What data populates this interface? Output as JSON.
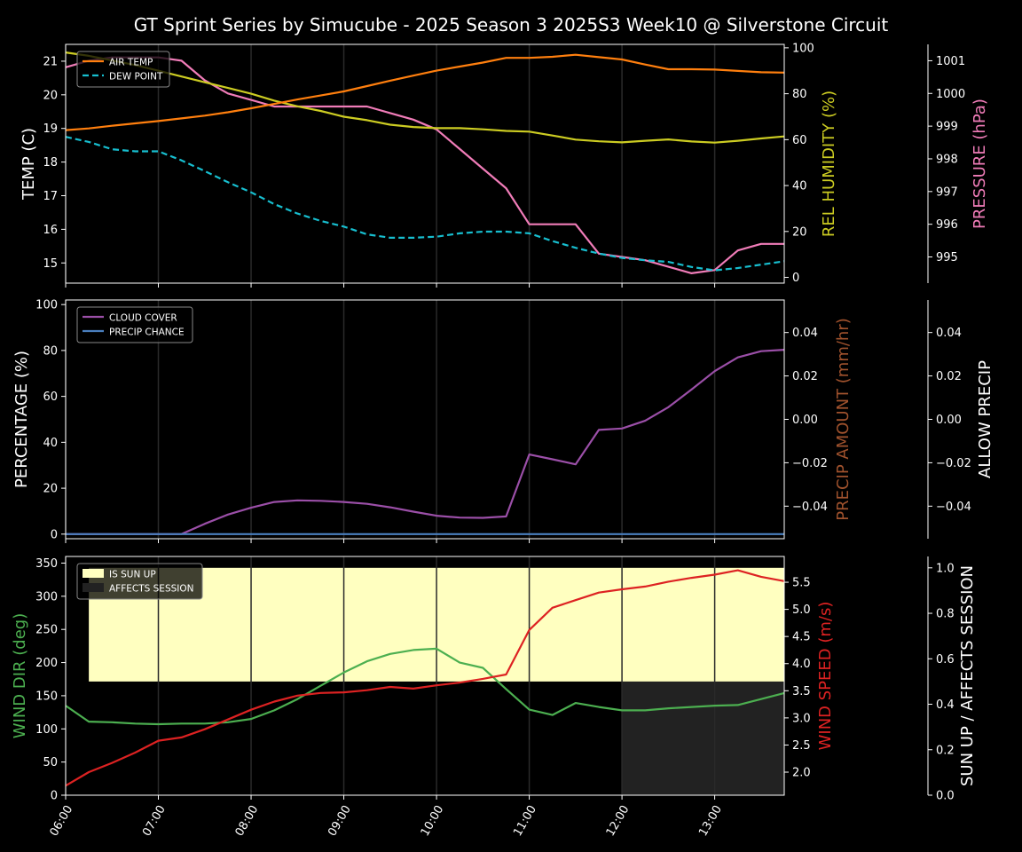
{
  "title": "GT Sprint Series by Simucube - 2025 Season 3 2025S3 Week10 @ Silverstone Circuit",
  "x_ticks": [
    "06:00",
    "07:00",
    "08:00",
    "09:00",
    "10:00",
    "11:00",
    "12:00",
    "13:00"
  ],
  "colors": {
    "background": "#000000",
    "axes": "#ffffff",
    "air_temp": "#ff7f0e",
    "dew_point": "#17becf",
    "humidity": "#cccc22",
    "pressure": "#f07cb8",
    "cloud": "#9b4fa8",
    "precip_chance": "#4a7fbf",
    "precip_amount_label": "#a0522d",
    "wind_dir": "#4caf50",
    "wind_speed": "#dd2222",
    "sun_up": "#ffffc0",
    "affects_session": "#222222"
  },
  "chart_data": [
    {
      "type": "line",
      "panel": "temperature",
      "ylabel": "TEMP (C)",
      "ylabel2": "REL HUMIDITY (%)",
      "ylabel3": "PRESSURE (hPa)",
      "yticks": [
        "15",
        "16",
        "17",
        "18",
        "19",
        "20",
        "21"
      ],
      "y2ticks": [
        "0",
        "20",
        "40",
        "60",
        "80",
        "100"
      ],
      "y3ticks": [
        "995",
        "996",
        "997",
        "998",
        "999",
        "1000",
        "1001"
      ],
      "ylim": [
        14.4,
        21.5
      ],
      "y2lim": [
        -2.5,
        101.5
      ],
      "y3lim": [
        994.2,
        1001.5
      ],
      "x": [
        6.0,
        6.25,
        6.5,
        6.75,
        7.0,
        7.25,
        7.5,
        7.75,
        8.0,
        8.25,
        8.5,
        8.75,
        9.0,
        9.25,
        9.5,
        9.75,
        10.0,
        10.25,
        10.5,
        10.75,
        11.0,
        11.25,
        11.5,
        11.75,
        12.0,
        12.25,
        12.5,
        12.75,
        13.0,
        13.25,
        13.5,
        13.75
      ],
      "legend": [
        "AIR TEMP",
        "DEW POINT"
      ],
      "series": [
        {
          "name": "AIR TEMP",
          "axis": "left",
          "values": [
            18.95,
            19.0,
            19.08,
            19.15,
            19.22,
            19.3,
            19.38,
            19.48,
            19.6,
            19.73,
            19.86,
            19.98,
            20.1,
            20.26,
            20.42,
            20.57,
            20.72,
            20.84,
            20.96,
            21.1,
            21.1,
            21.13,
            21.19,
            21.12,
            21.05,
            20.9,
            20.76,
            20.76,
            20.75,
            20.71,
            20.67,
            20.66
          ]
        },
        {
          "name": "DEW POINT",
          "axis": "left",
          "values": [
            18.75,
            18.6,
            18.38,
            18.32,
            18.32,
            18.05,
            17.73,
            17.4,
            17.1,
            16.75,
            16.47,
            16.25,
            16.08,
            15.85,
            15.75,
            15.75,
            15.78,
            15.88,
            15.93,
            15.93,
            15.88,
            15.65,
            15.45,
            15.28,
            15.15,
            15.08,
            15.03,
            14.88,
            14.78,
            14.85,
            14.95,
            15.05
          ]
        },
        {
          "name": "REL HUMIDITY",
          "axis": "right",
          "values": [
            98,
            96.5,
            94.5,
            92.5,
            90,
            87.5,
            85,
            82.5,
            80,
            77,
            74.5,
            72.5,
            70,
            68.5,
            66.5,
            65.5,
            65,
            65,
            64.5,
            63.8,
            63.5,
            61.8,
            60,
            59.3,
            58.8,
            59.5,
            60.1,
            59.2,
            58.7,
            59.5,
            60.5,
            61.4
          ]
        },
        {
          "name": "PRESSURE",
          "axis": "right2",
          "values": [
            1000.8,
            1001.0,
            1001.1,
            1001.1,
            1001.1,
            1001.0,
            1000.4,
            1000.0,
            999.8,
            999.6,
            999.6,
            999.6,
            999.6,
            999.6,
            999.4,
            999.2,
            998.9,
            998.3,
            997.7,
            997.1,
            996.0,
            996.0,
            996.0,
            995.1,
            995.0,
            994.9,
            994.7,
            994.5,
            994.6,
            995.2,
            995.4,
            995.4
          ]
        }
      ]
    },
    {
      "type": "line",
      "panel": "precipitation",
      "ylabel": "PERCENTAGE (%)",
      "ylabel2": "PRECIP AMOUNT (mm/hr)",
      "ylabel3": "ALLOW PRECIP",
      "yticks": [
        "0",
        "20",
        "40",
        "60",
        "80",
        "100"
      ],
      "y2ticks": [
        "−0.04",
        "−0.02",
        "0.00",
        "0.02",
        "0.04"
      ],
      "y3ticks": [
        "−0.04",
        "−0.02",
        "0.00",
        "0.02",
        "0.04"
      ],
      "ylim": [
        -2,
        102
      ],
      "y2lim": [
        -0.055,
        0.055
      ],
      "x": [
        6.0,
        6.25,
        6.5,
        6.75,
        7.0,
        7.25,
        7.5,
        7.75,
        8.0,
        8.25,
        8.5,
        8.75,
        9.0,
        9.25,
        9.5,
        9.75,
        10.0,
        10.25,
        10.5,
        10.75,
        11.0,
        11.25,
        11.5,
        11.75,
        12.0,
        12.25,
        12.5,
        12.75,
        13.0,
        13.25,
        13.5,
        13.75
      ],
      "legend": [
        "CLOUD COVER",
        "PRECIP CHANCE"
      ],
      "series": [
        {
          "name": "CLOUD COVER",
          "values": [
            0,
            0,
            0,
            0,
            0,
            0,
            4.5,
            8.5,
            11.5,
            14,
            14.7,
            14.5,
            14,
            13.2,
            11.7,
            9.8,
            8,
            7.2,
            7.1,
            7.7,
            34.7,
            32.6,
            30.4,
            45.4,
            46,
            49.4,
            55.3,
            63,
            71,
            77,
            79.7,
            80.3
          ]
        },
        {
          "name": "PRECIP CHANCE",
          "values": [
            0,
            0,
            0,
            0,
            0,
            0,
            0,
            0,
            0,
            0,
            0,
            0,
            0,
            0,
            0,
            0,
            0,
            0,
            0,
            0,
            0,
            0,
            0,
            0,
            0,
            0,
            0,
            0,
            0,
            0,
            0,
            0
          ]
        }
      ]
    },
    {
      "type": "line",
      "panel": "wind",
      "ylabel": "WIND DIR (deg)",
      "ylabel2": "WIND SPEED (m/s)",
      "ylabel3": "SUN UP / AFFECTS SESSION",
      "yticks": [
        "0",
        "50",
        "100",
        "150",
        "200",
        "250",
        "300",
        "350"
      ],
      "y2ticks": [
        "2.0",
        "2.5",
        "3.0",
        "3.5",
        "4.0",
        "4.5",
        "5.0",
        "5.5"
      ],
      "y3ticks": [
        "0.0",
        "0.2",
        "0.4",
        "0.6",
        "0.8",
        "1.0"
      ],
      "ylim": [
        0,
        360
      ],
      "y2lim": [
        1.575,
        5.975
      ],
      "y3lim": [
        0,
        1.05
      ],
      "x": [
        6.0,
        6.25,
        6.5,
        6.75,
        7.0,
        7.25,
        7.5,
        7.75,
        8.0,
        8.25,
        8.5,
        8.75,
        9.0,
        9.25,
        9.5,
        9.75,
        10.0,
        10.25,
        10.5,
        10.75,
        11.0,
        11.25,
        11.5,
        11.75,
        12.0,
        12.25,
        12.5,
        12.75,
        13.0,
        13.25,
        13.5,
        13.75
      ],
      "legend": [
        "IS SUN UP",
        "AFFECTS SESSION"
      ],
      "sun_up": {
        "start": 6.25,
        "end": 13.75,
        "value": 1.0,
        "base": 0.5
      },
      "affects_session": {
        "start": 12.0,
        "end": 13.75,
        "value": 0.5
      },
      "series": [
        {
          "name": "WIND DIR",
          "axis": "left",
          "values": [
            135,
            111,
            110,
            108,
            107,
            108,
            108,
            110,
            115,
            128,
            145,
            165,
            185,
            202,
            213,
            219,
            221,
            200,
            192,
            160,
            129,
            121,
            139,
            133,
            128,
            128,
            131,
            133,
            135,
            136,
            145,
            154
          ]
        },
        {
          "name": "WIND SPEED",
          "axis": "right",
          "values": [
            1.75,
            2.0,
            2.17,
            2.36,
            2.58,
            2.64,
            2.79,
            2.97,
            3.15,
            3.3,
            3.41,
            3.46,
            3.47,
            3.51,
            3.57,
            3.54,
            3.6,
            3.65,
            3.72,
            3.8,
            4.62,
            5.03,
            5.17,
            5.31,
            5.37,
            5.42,
            5.51,
            5.58,
            5.64,
            5.72,
            5.6,
            5.52
          ]
        }
      ]
    }
  ]
}
